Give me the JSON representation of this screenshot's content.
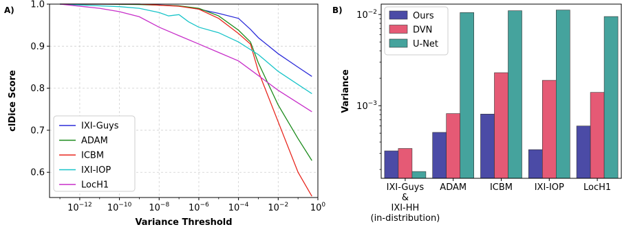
{
  "chart_data": [
    {
      "panel_label": "A)",
      "type": "line",
      "xlabel": "Variance Threshold",
      "ylabel": "clDice Score",
      "x_scale": "log",
      "xlim": [
        3e-14,
        1
      ],
      "ylim": [
        0.54,
        1.0
      ],
      "x_ticks": [
        1e-12,
        1e-10,
        1e-08,
        1e-06,
        0.0001,
        0.01,
        1
      ],
      "x_tick_labels": [
        {
          "base": "10",
          "exp": "−12"
        },
        {
          "base": "10",
          "exp": "−10"
        },
        {
          "base": "10",
          "exp": "−8"
        },
        {
          "base": "10",
          "exp": "−6"
        },
        {
          "base": "10",
          "exp": "−4"
        },
        {
          "base": "10",
          "exp": "−2"
        },
        {
          "base": "10",
          "exp": "0"
        }
      ],
      "y_ticks": [
        0.6,
        0.7,
        0.8,
        0.9,
        1.0
      ],
      "y_tick_labels": [
        "0.6",
        "0.7",
        "0.8",
        "0.9",
        "1.0"
      ],
      "grid": true,
      "legend_position": "bottom-left",
      "series": [
        {
          "name": "IXI-Guys",
          "color": "#2b2bd9",
          "x": [
            1e-13,
            1e-11,
            1e-09,
            1e-07,
            1e-06,
            1e-05,
            0.0001,
            0.0004,
            0.001,
            0.01,
            0.1,
            0.5
          ],
          "y": [
            1.0,
            1.0,
            1.0,
            0.996,
            0.988,
            0.978,
            0.966,
            0.94,
            0.92,
            0.882,
            0.85,
            0.828
          ]
        },
        {
          "name": "ADAM",
          "color": "#1a8a1a",
          "x": [
            1e-13,
            1e-11,
            1e-09,
            1e-07,
            1e-06,
            1e-05,
            0.0001,
            0.0004,
            0.001,
            0.01,
            0.1,
            0.5
          ],
          "y": [
            1.0,
            1.0,
            0.999,
            0.996,
            0.99,
            0.972,
            0.938,
            0.91,
            0.86,
            0.76,
            0.68,
            0.628
          ]
        },
        {
          "name": "ICBM",
          "color": "#e8261d",
          "x": [
            1e-13,
            1e-11,
            1e-09,
            1e-07,
            1e-06,
            1e-05,
            0.0001,
            0.0004,
            0.001,
            0.01,
            0.1,
            0.5
          ],
          "y": [
            1.0,
            1.0,
            1.0,
            0.995,
            0.988,
            0.966,
            0.93,
            0.905,
            0.84,
            0.72,
            0.6,
            0.543
          ]
        },
        {
          "name": "IXI-IOP",
          "color": "#17c4c9",
          "x": [
            1e-13,
            1e-11,
            1e-10,
            1e-09,
            1e-08,
            3e-08,
            1e-07,
            3e-07,
            1e-06,
            1e-05,
            0.0001,
            0.001,
            0.01,
            0.5
          ],
          "y": [
            1.0,
            0.996,
            0.994,
            0.99,
            0.98,
            0.972,
            0.975,
            0.958,
            0.945,
            0.932,
            0.91,
            0.88,
            0.84,
            0.787
          ]
        },
        {
          "name": "LocH1",
          "color": "#c72ec9",
          "x": [
            1e-13,
            1e-11,
            1e-10,
            1e-09,
            1e-08,
            1e-07,
            1e-06,
            1e-05,
            0.0001,
            0.001,
            0.01,
            0.5
          ],
          "y": [
            1.0,
            0.99,
            0.982,
            0.97,
            0.945,
            0.925,
            0.905,
            0.885,
            0.865,
            0.83,
            0.795,
            0.744
          ]
        }
      ]
    },
    {
      "panel_label": "B)",
      "type": "bar",
      "ylabel": "Variance",
      "y_scale": "log",
      "ylim": [
        0.00016,
        0.013
      ],
      "y_major_ticks": [
        {
          "value": 0.001,
          "base": "10",
          "exp": "−3"
        },
        {
          "value": 0.01,
          "base": "10",
          "exp": "−2"
        }
      ],
      "y_minor_ticks": [
        0.0002,
        0.0003,
        0.0004,
        0.0005,
        0.0006,
        0.0007,
        0.0008,
        0.0009,
        0.002,
        0.003,
        0.004,
        0.005,
        0.006,
        0.007,
        0.008,
        0.009
      ],
      "categories": [
        [
          "IXI-Guys",
          "&",
          "IXI-HH",
          "(in-distribution)"
        ],
        [
          "ADAM"
        ],
        [
          "ICBM"
        ],
        [
          "IXI-IOP"
        ],
        [
          "LocH1"
        ]
      ],
      "legend_position": "top-left",
      "series": [
        {
          "name": "Ours",
          "color": "#4b4ba6",
          "values": [
            0.00032,
            0.00051,
            0.00081,
            0.00033,
            0.0006
          ]
        },
        {
          "name": "DVN",
          "color": "#e55a75",
          "values": [
            0.00034,
            0.00082,
            0.0023,
            0.0019,
            0.0014
          ]
        },
        {
          "name": "U-Net",
          "color": "#45a39d",
          "values": [
            0.00019,
            0.0105,
            0.011,
            0.0112,
            0.0095
          ]
        }
      ]
    }
  ]
}
